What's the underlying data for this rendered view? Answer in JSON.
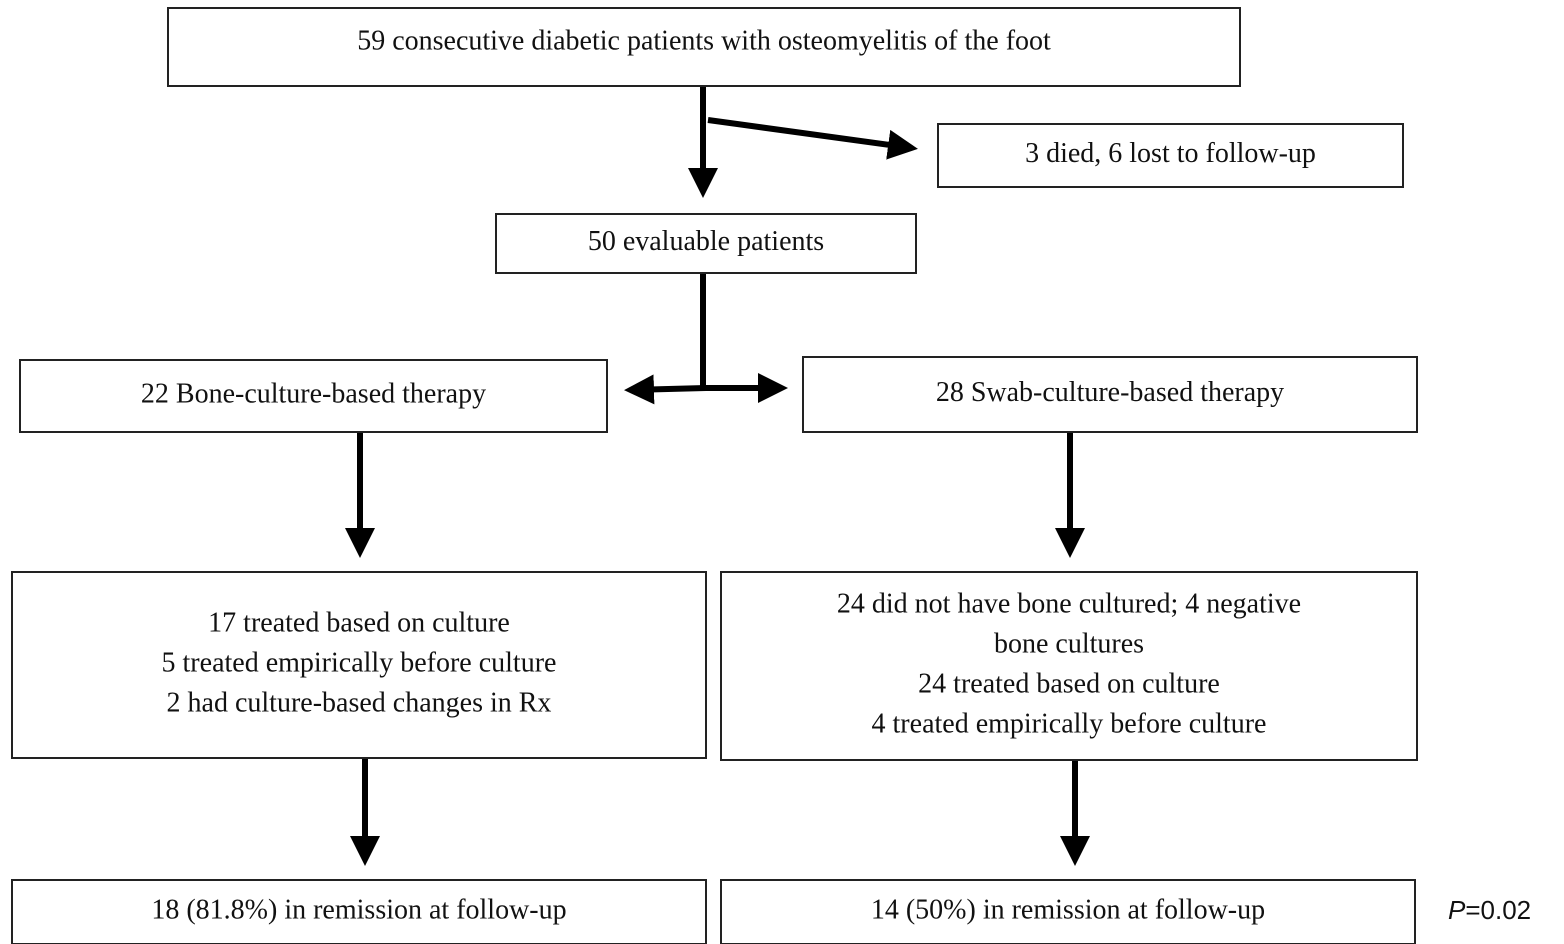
{
  "nodes": [
    {
      "lines": [
        "59 consecutive diabetic patients with osteomyelitis of the foot"
      ]
    },
    {
      "lines": [
        "3 died, 6 lost to follow-up"
      ]
    },
    {
      "lines": [
        "50 evaluable patients"
      ]
    },
    {
      "lines": [
        "22 Bone-culture-based therapy"
      ]
    },
    {
      "lines": [
        "28 Swab-culture-based therapy"
      ]
    },
    {
      "lines": [
        "17 treated based on culture",
        "5 treated empirically before culture",
        "2 had culture-based changes in Rx"
      ]
    },
    {
      "lines": [
        "24 did not have bone cultured; 4 negative",
        "bone cultures",
        "24 treated based on culture",
        "4 treated empirically before culture"
      ]
    },
    {
      "lines": [
        "18 (81.8%) in remission at follow-up"
      ]
    },
    {
      "lines": [
        "14 (50%) in remission at follow-up"
      ]
    }
  ],
  "p_value": {
    "symbol": "P",
    "text": "=0.02"
  }
}
